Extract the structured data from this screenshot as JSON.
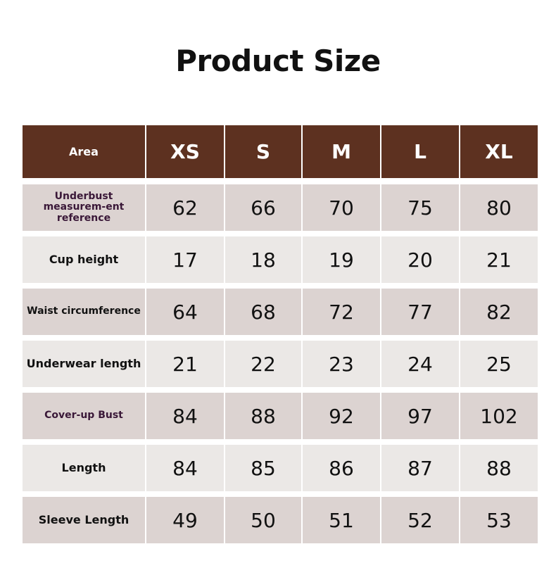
{
  "title": "Product Size",
  "table": {
    "headers": [
      "Area",
      "XS",
      "S",
      "M",
      "L",
      "XL"
    ],
    "rows": [
      {
        "label": "Underbust measurem-ent reference",
        "values": [
          "62",
          "66",
          "70",
          "75",
          "80"
        ]
      },
      {
        "label": "Cup height",
        "values": [
          "17",
          "18",
          "19",
          "20",
          "21"
        ]
      },
      {
        "label": "Waist circumference",
        "values": [
          "64",
          "68",
          "72",
          "77",
          "82"
        ]
      },
      {
        "label": "Underwear length",
        "values": [
          "21",
          "22",
          "23",
          "24",
          "25"
        ]
      },
      {
        "label": "Cover-up Bust",
        "values": [
          "84",
          "88",
          "92",
          "97",
          "102"
        ]
      },
      {
        "label": "Length",
        "values": [
          "84",
          "85",
          "86",
          "87",
          "88"
        ]
      },
      {
        "label": "Sleeve Length",
        "values": [
          "49",
          "50",
          "51",
          "52",
          "53"
        ]
      }
    ]
  },
  "colors": {
    "header": "#5d3120",
    "row_dark": "#dcd3d1",
    "row_light": "#ebe8e6"
  }
}
